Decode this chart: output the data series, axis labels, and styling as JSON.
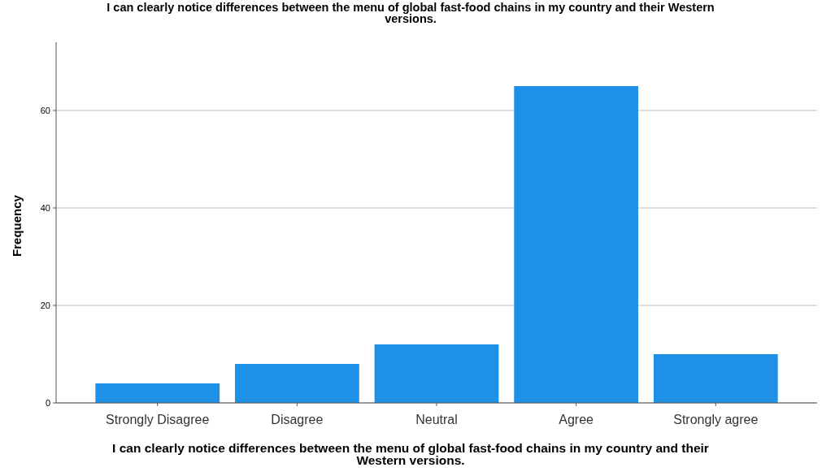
{
  "chart_data": {
    "type": "bar",
    "title": "I can clearly notice differences between the menu of global fast-food chains in my country and their Western versions.",
    "xlabel": "I can clearly notice differences between the menu of global fast-food chains in my country and their Western versions.",
    "ylabel": "Frequency",
    "categories": [
      "Strongly Disagree",
      "Disagree",
      "Neutral",
      "Agree",
      "Strongly agree"
    ],
    "values": [
      4,
      8,
      12,
      65,
      10
    ],
    "color": "#1e90e6",
    "ylim": [
      0,
      74
    ],
    "yticks": [
      0,
      20,
      40,
      60
    ],
    "grid": "y"
  }
}
